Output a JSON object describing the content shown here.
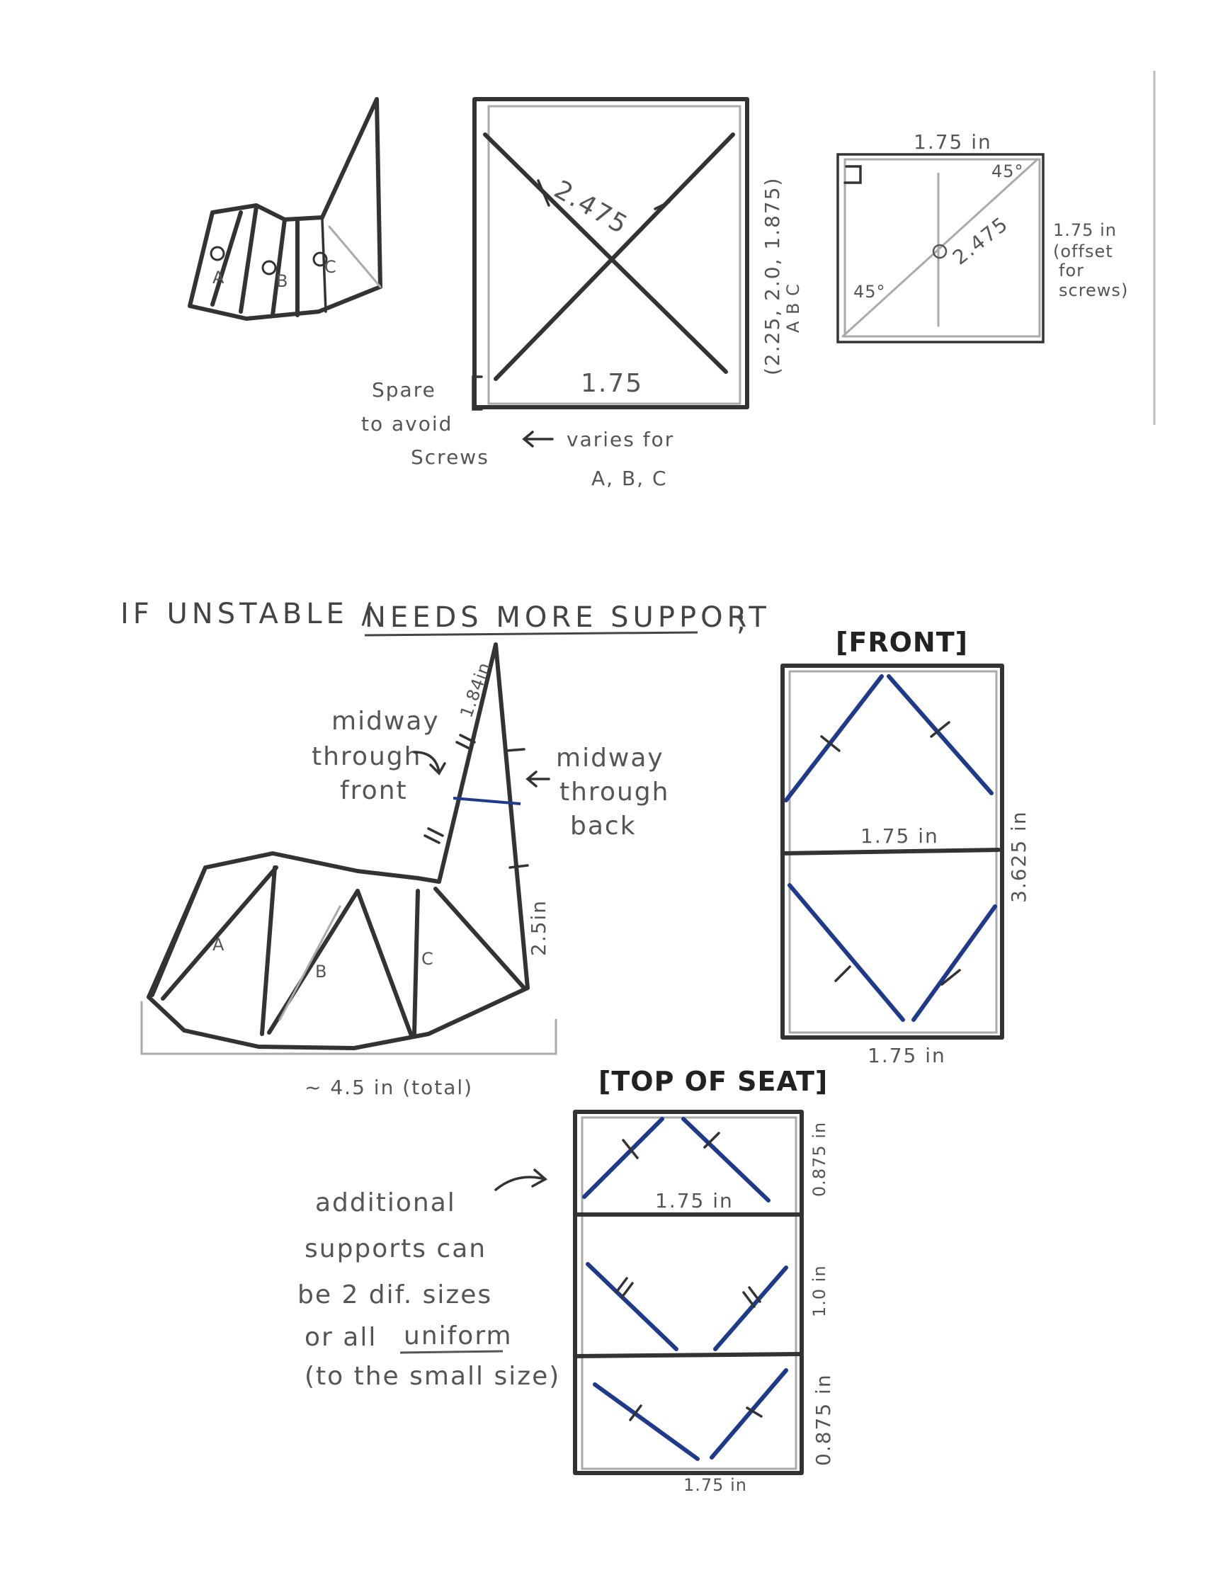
{
  "sketch1": {
    "labels": {
      "a": "A",
      "b": "B",
      "c": "C"
    }
  },
  "rect_diagram": {
    "diagonal": "2.475",
    "width": "1.75",
    "side_dims": "(2.25, 2.0, 1.875)",
    "side_letters": "A B C",
    "spare_note": [
      "Spare",
      "to avoid",
      "Screws"
    ],
    "varies_note": [
      "varies for",
      "A, B, C"
    ]
  },
  "square_diagram": {
    "top": "1.75 in",
    "angle_top": "45°",
    "angle_bottom": "45°",
    "diagonal": "2.475",
    "right_note": [
      "1.75 in",
      "(offset",
      "for",
      "screws)"
    ]
  },
  "heading": {
    "prefix": "IF UNSTABLE /",
    "underlined": "NEEDS MORE SUPPORT",
    "suffix": ";"
  },
  "chair": {
    "top_dim": "1.84in",
    "midway_front": [
      "midway",
      "through",
      "front"
    ],
    "midway_back": [
      "midway",
      "through",
      "back"
    ],
    "height_dim": "2.5in",
    "labels": {
      "a": "A",
      "b": "B",
      "c": "C"
    },
    "total": "~ 4.5 in (total)"
  },
  "front_view": {
    "title": "[FRONT]",
    "mid_label": "1.75 in",
    "side_label": "3.625 in",
    "bottom_label": "1.75 in"
  },
  "top_of_seat": {
    "title": "[TOP OF SEAT]",
    "section_label": "1.75 in",
    "side_1": "0.875 in",
    "side_2": "1.0 in",
    "side_3": "0.875 in",
    "bottom_label": "1.75 in"
  },
  "notes": {
    "lines": [
      "additional",
      "supports can",
      "be 2 dif. sizes",
      "or all",
      "(to the small size)"
    ],
    "uniform": "uniform"
  }
}
